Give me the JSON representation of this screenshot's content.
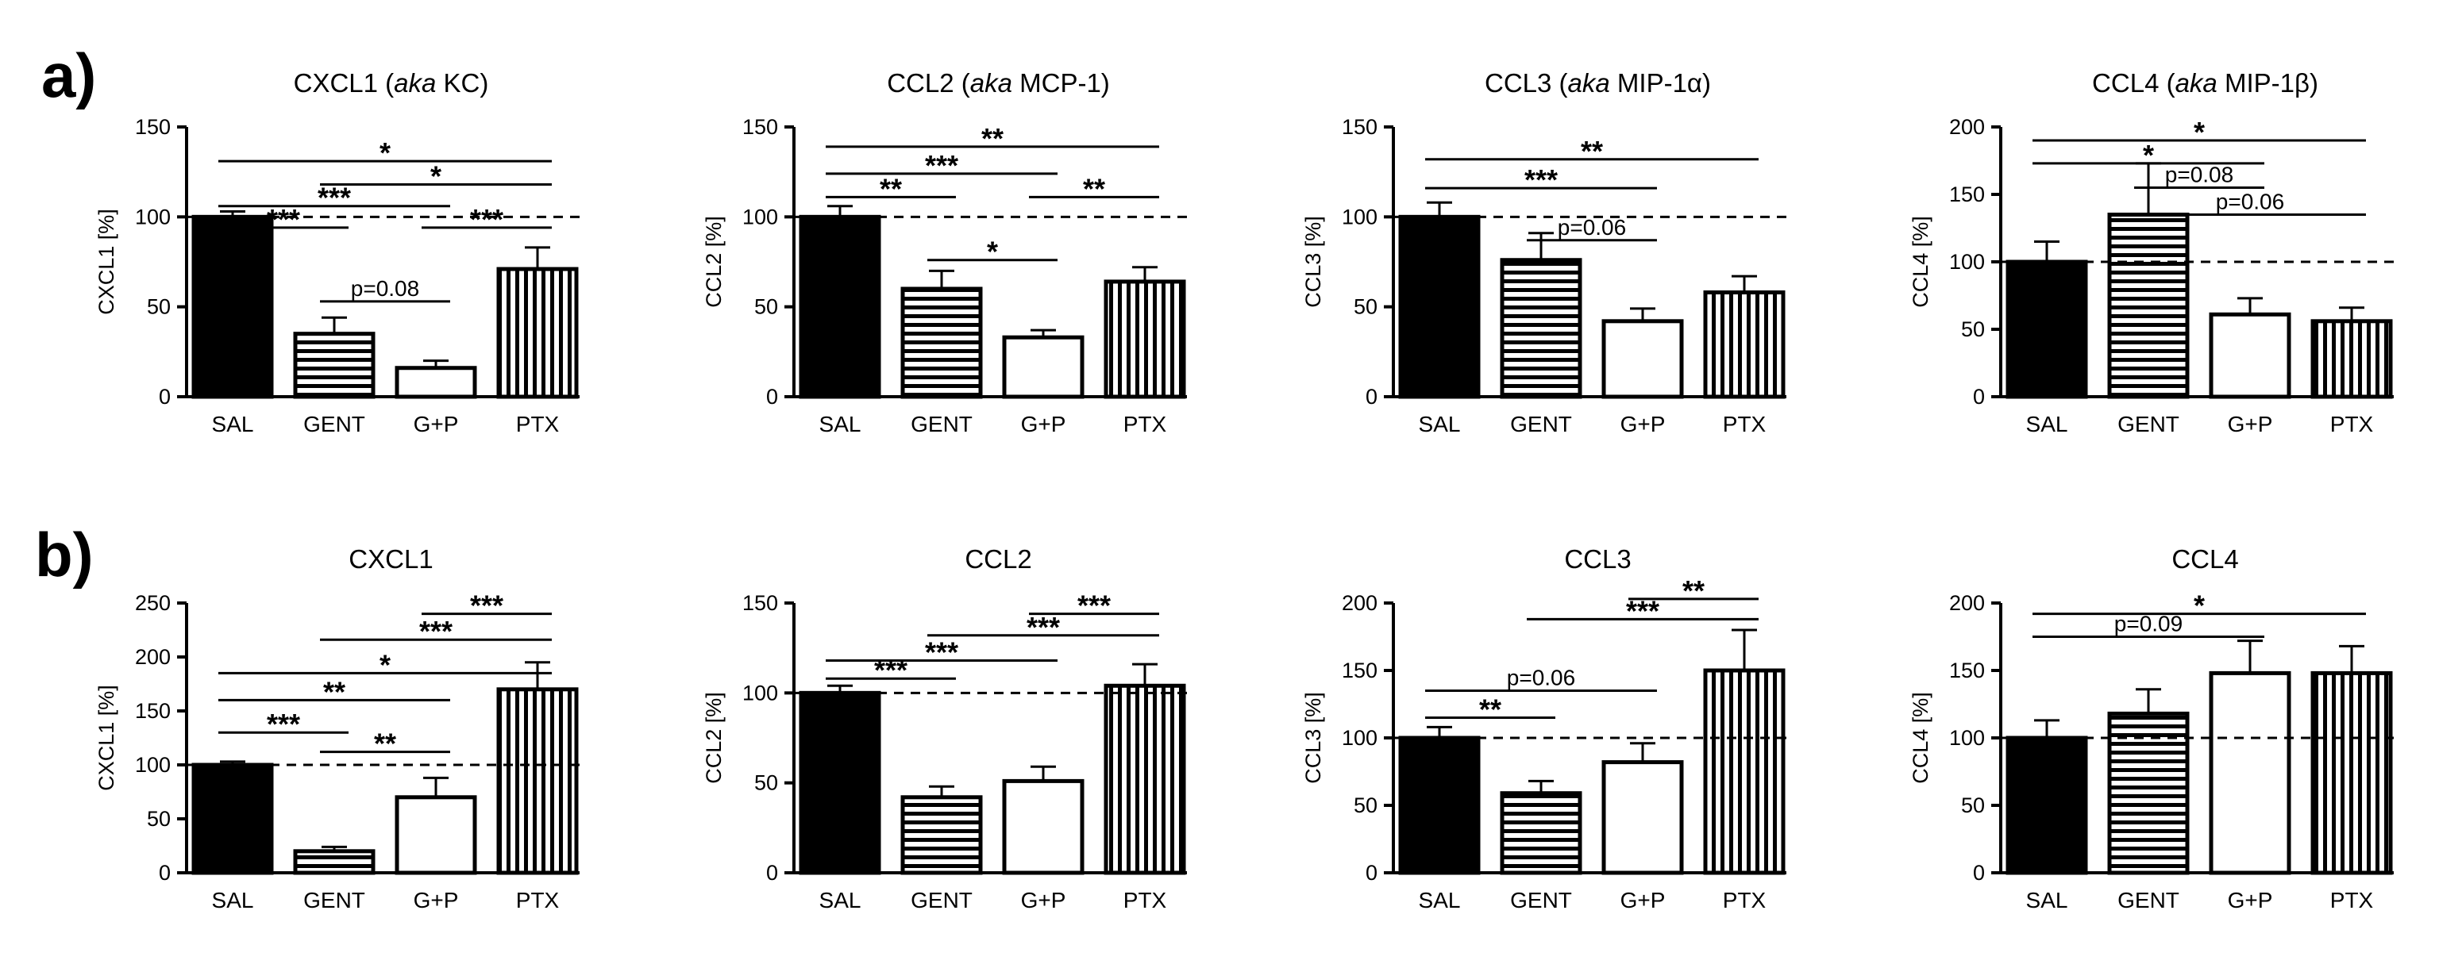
{
  "panels": [
    {
      "letter": "a)"
    },
    {
      "letter": "b)"
    }
  ],
  "colors": {
    "ink": "#000000",
    "background": "#ffffff"
  },
  "chart_data": [
    {
      "type": "bar",
      "panel": "a)",
      "title_parts": [
        {
          "text": "CXCL1 ("
        },
        {
          "text": "aka",
          "italic": true
        },
        {
          "text": " KC)"
        }
      ],
      "ylabel": "CXCL1 [%]",
      "ylim": [
        0,
        150
      ],
      "yticks": [
        0,
        50,
        100,
        150
      ],
      "categories": [
        "SAL",
        "GENT",
        "G+P",
        "PTX"
      ],
      "values": [
        100,
        35,
        16,
        71
      ],
      "errors": [
        3,
        9,
        4,
        12
      ],
      "patterns": [
        "solid",
        "hlines",
        "open",
        "vlines"
      ],
      "reference_line": 100,
      "annotations": [
        {
          "from": 0,
          "to": 3,
          "y": 131,
          "label": "*"
        },
        {
          "from": 1,
          "to": 3,
          "y": 118,
          "label": "*"
        },
        {
          "from": 0,
          "to": 2,
          "y": 106,
          "label": "***"
        },
        {
          "from": 0,
          "to": 1,
          "y": 94,
          "label": "***"
        },
        {
          "from": 2,
          "to": 3,
          "y": 94,
          "label": "***"
        },
        {
          "from": 1,
          "to": 2,
          "y": 53,
          "label": "p=0.08"
        }
      ]
    },
    {
      "type": "bar",
      "panel": "a)",
      "title_parts": [
        {
          "text": "CCL2 ("
        },
        {
          "text": "aka",
          "italic": true
        },
        {
          "text": " MCP-1)"
        }
      ],
      "ylabel": "CCL2 [%]",
      "ylim": [
        0,
        150
      ],
      "yticks": [
        0,
        50,
        100,
        150
      ],
      "categories": [
        "SAL",
        "GENT",
        "G+P",
        "PTX"
      ],
      "values": [
        100,
        60,
        33,
        64
      ],
      "errors": [
        6,
        10,
        4,
        8
      ],
      "patterns": [
        "solid",
        "hlines",
        "open",
        "vlines"
      ],
      "reference_line": 100,
      "annotations": [
        {
          "from": 0,
          "to": 3,
          "y": 139,
          "label": "**"
        },
        {
          "from": 0,
          "to": 2,
          "y": 124,
          "label": "***"
        },
        {
          "from": 0,
          "to": 1,
          "y": 111,
          "label": "**"
        },
        {
          "from": 2,
          "to": 3,
          "y": 111,
          "label": "**"
        },
        {
          "from": 1,
          "to": 2,
          "y": 76,
          "label": "*"
        }
      ]
    },
    {
      "type": "bar",
      "panel": "a)",
      "title_parts": [
        {
          "text": "CCL3 ("
        },
        {
          "text": "aka",
          "italic": true
        },
        {
          "text": " MIP-1α)"
        }
      ],
      "ylabel": "CCL3 [%]",
      "ylim": [
        0,
        150
      ],
      "yticks": [
        0,
        50,
        100,
        150
      ],
      "categories": [
        "SAL",
        "GENT",
        "G+P",
        "PTX"
      ],
      "values": [
        100,
        76,
        42,
        58
      ],
      "errors": [
        8,
        15,
        7,
        9
      ],
      "patterns": [
        "solid",
        "hlines",
        "open",
        "vlines"
      ],
      "reference_line": 100,
      "annotations": [
        {
          "from": 0,
          "to": 3,
          "y": 132,
          "label": "**"
        },
        {
          "from": 0,
          "to": 2,
          "y": 116,
          "label": "***"
        },
        {
          "from": 1,
          "to": 2,
          "y": 87,
          "label": "p=0.06"
        }
      ]
    },
    {
      "type": "bar",
      "panel": "a)",
      "title_parts": [
        {
          "text": "CCL4 ("
        },
        {
          "text": "aka",
          "italic": true
        },
        {
          "text": " MIP-1β)"
        }
      ],
      "ylabel": "CCL4 [%]",
      "ylim": [
        0,
        200
      ],
      "yticks": [
        0,
        50,
        100,
        150,
        200
      ],
      "categories": [
        "SAL",
        "GENT",
        "G+P",
        "PTX"
      ],
      "values": [
        100,
        135,
        61,
        56
      ],
      "errors": [
        15,
        38,
        12,
        10
      ],
      "patterns": [
        "solid",
        "hlines",
        "open",
        "vlines"
      ],
      "reference_line": 100,
      "annotations": [
        {
          "from": 0,
          "to": 3,
          "y": 190,
          "label": "*"
        },
        {
          "from": 0,
          "to": 2,
          "y": 173,
          "label": "*"
        },
        {
          "from": 1,
          "to": 2,
          "y": 155,
          "label": "p=0.08"
        },
        {
          "from": 1,
          "to": 3,
          "y": 135,
          "label": "p=0.06"
        }
      ]
    },
    {
      "type": "bar",
      "panel": "b)",
      "title_parts": [
        {
          "text": "CXCL1"
        }
      ],
      "ylabel": "CXCL1 [%]",
      "ylim": [
        0,
        250
      ],
      "yticks": [
        0,
        50,
        100,
        150,
        200,
        250
      ],
      "categories": [
        "SAL",
        "GENT",
        "G+P",
        "PTX"
      ],
      "values": [
        100,
        20,
        70,
        170
      ],
      "errors": [
        3,
        4,
        18,
        25
      ],
      "patterns": [
        "solid",
        "hlines",
        "open",
        "vlines"
      ],
      "reference_line": 100,
      "annotations": [
        {
          "from": 2,
          "to": 3,
          "y": 240,
          "label": "***"
        },
        {
          "from": 1,
          "to": 3,
          "y": 216,
          "label": "***"
        },
        {
          "from": 0,
          "to": 3,
          "y": 185,
          "label": "*"
        },
        {
          "from": 0,
          "to": 2,
          "y": 160,
          "label": "**"
        },
        {
          "from": 0,
          "to": 1,
          "y": 130,
          "label": "***"
        },
        {
          "from": 1,
          "to": 2,
          "y": 112,
          "label": "**"
        }
      ]
    },
    {
      "type": "bar",
      "panel": "b)",
      "title_parts": [
        {
          "text": "CCL2"
        }
      ],
      "ylabel": "CCL2 [%]",
      "ylim": [
        0,
        150
      ],
      "yticks": [
        0,
        50,
        100,
        150
      ],
      "categories": [
        "SAL",
        "GENT",
        "G+P",
        "PTX"
      ],
      "values": [
        100,
        42,
        51,
        104
      ],
      "errors": [
        4,
        6,
        8,
        12
      ],
      "patterns": [
        "solid",
        "hlines",
        "open",
        "vlines"
      ],
      "reference_line": 100,
      "annotations": [
        {
          "from": 2,
          "to": 3,
          "y": 144,
          "label": "***"
        },
        {
          "from": 1,
          "to": 3,
          "y": 132,
          "label": "***"
        },
        {
          "from": 0,
          "to": 2,
          "y": 118,
          "label": "***"
        },
        {
          "from": 0,
          "to": 1,
          "y": 108,
          "label": "***"
        }
      ]
    },
    {
      "type": "bar",
      "panel": "b)",
      "title_parts": [
        {
          "text": "CCL3"
        }
      ],
      "ylabel": "CCL3 [%]",
      "ylim": [
        0,
        200
      ],
      "yticks": [
        0,
        50,
        100,
        150,
        200
      ],
      "categories": [
        "SAL",
        "GENT",
        "G+P",
        "PTX"
      ],
      "values": [
        100,
        59,
        82,
        150
      ],
      "errors": [
        8,
        9,
        14,
        30
      ],
      "patterns": [
        "solid",
        "hlines",
        "open",
        "vlines"
      ],
      "reference_line": 100,
      "annotations": [
        {
          "from": 2,
          "to": 3,
          "y": 203,
          "label": "**"
        },
        {
          "from": 1,
          "to": 3,
          "y": 188,
          "label": "***"
        },
        {
          "from": 0,
          "to": 2,
          "y": 135,
          "label": "p=0.06"
        },
        {
          "from": 0,
          "to": 1,
          "y": 115,
          "label": "**"
        }
      ]
    },
    {
      "type": "bar",
      "panel": "b)",
      "title_parts": [
        {
          "text": "CCL4"
        }
      ],
      "ylabel": "CCL4 [%]",
      "ylim": [
        0,
        200
      ],
      "yticks": [
        0,
        50,
        100,
        150,
        200
      ],
      "categories": [
        "SAL",
        "GENT",
        "G+P",
        "PTX"
      ],
      "values": [
        100,
        118,
        148,
        148
      ],
      "errors": [
        13,
        18,
        24,
        20
      ],
      "patterns": [
        "solid",
        "hlines",
        "open",
        "vlines"
      ],
      "reference_line": 100,
      "annotations": [
        {
          "from": 0,
          "to": 3,
          "y": 192,
          "label": "*"
        },
        {
          "from": 0,
          "to": 2,
          "y": 175,
          "label": "p=0.09"
        }
      ]
    }
  ]
}
